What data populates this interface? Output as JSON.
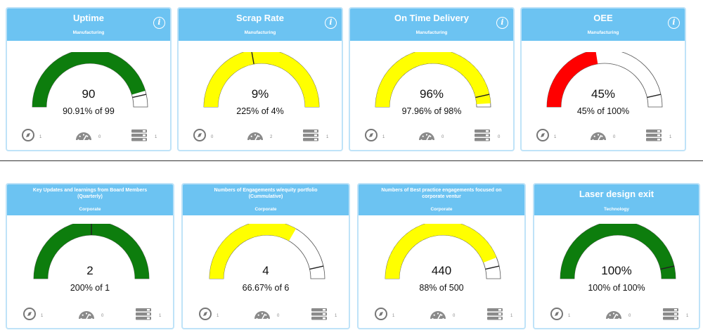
{
  "colors": {
    "header": "#6cc3f2",
    "green": "#0d7d0d",
    "yellow": "#ffff00",
    "red": "#ff0000",
    "track": "#ffffff"
  },
  "cards": [
    {
      "title": "Uptime",
      "category": "Manufacturing",
      "value": "90",
      "subtitle": "90.91% of 99",
      "fill_fraction": 0.9091,
      "color": "green",
      "show_info": true,
      "counts": [
        "1",
        "0",
        "1"
      ]
    },
    {
      "title": "Scrap Rate",
      "category": "Manufacturing",
      "value": "9%",
      "subtitle": "225% of 4%",
      "fill_fraction": 1.0,
      "target_fraction": 0.444,
      "color": "yellow",
      "show_info": true,
      "counts": [
        "0",
        "2",
        "1"
      ]
    },
    {
      "title": "On Time Delivery",
      "category": "Manufacturing",
      "value": "96%",
      "subtitle": "97.96% of 98%",
      "fill_fraction": 0.9796,
      "color": "yellow",
      "show_info": true,
      "counts": [
        "1",
        "0",
        "0"
      ]
    },
    {
      "title": "OEE",
      "category": "Manufacturing",
      "value": "45%",
      "subtitle": "45% of 100%",
      "fill_fraction": 0.45,
      "color": "red",
      "show_info": true,
      "counts": [
        "1",
        "0",
        "1"
      ]
    },
    {
      "title": "Key Updates and learnings from Board Members (Quarterly)",
      "category": "Corporate",
      "value": "2",
      "subtitle": "200% of 1",
      "fill_fraction": 1.0,
      "target_fraction": 0.5,
      "color": "green",
      "show_info": false,
      "counts": [
        "1",
        "0",
        "1"
      ]
    },
    {
      "title": "Numbers of Engagements w/equity portfolio (Cummulative)",
      "category": "Corporate",
      "value": "4",
      "subtitle": "66.67% of 6",
      "fill_fraction": 0.6667,
      "color": "yellow",
      "show_info": false,
      "counts": [
        "1",
        "0",
        "1"
      ]
    },
    {
      "title": "Numbers of Best practice engagements focused on corporate ventur",
      "category": "Corporate",
      "value": "440",
      "subtitle": "88% of 500",
      "fill_fraction": 0.88,
      "color": "yellow",
      "show_info": false,
      "counts": [
        "1",
        "0",
        "1"
      ]
    },
    {
      "title": "Laser design exit",
      "category": "Technology",
      "value": "100%",
      "subtitle": "100% of 100%",
      "fill_fraction": 1.0,
      "color": "green",
      "show_info": false,
      "counts": [
        "1",
        "0",
        "1"
      ]
    }
  ]
}
